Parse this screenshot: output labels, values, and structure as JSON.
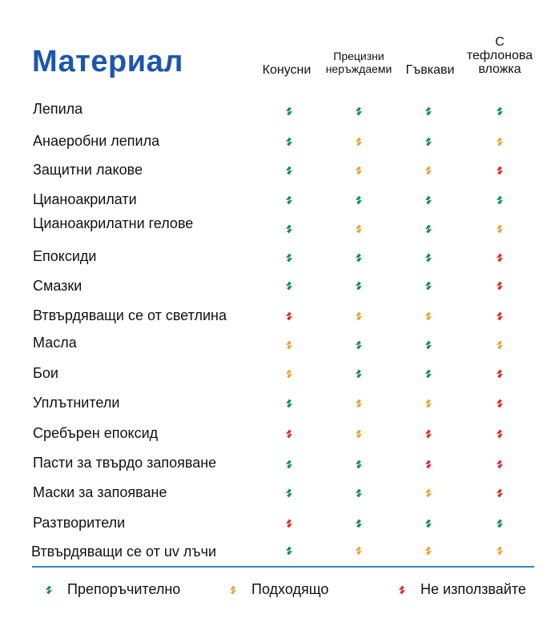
{
  "title": "Материал",
  "columns": [
    {
      "lines": [
        "Конусни"
      ]
    },
    {
      "lines": [
        "Прецизни",
        "неръждаеми"
      ]
    },
    {
      "lines": [
        "Гъвкави"
      ]
    },
    {
      "lines": [
        "С",
        "тефлонова",
        "вложка"
      ]
    }
  ],
  "colors": {
    "green": "#13924a",
    "orange": "#f0a030",
    "red": "#e02a2a",
    "title": "#1a56b0",
    "divider": "#2f86c6"
  },
  "icon": "arrow-swirl-icon",
  "rows": [
    {
      "label": "Лепила",
      "marks": [
        "green",
        "green",
        "green",
        "green"
      ]
    },
    {
      "label": "Анаеробни лепила",
      "marks": [
        "green",
        "orange",
        "green",
        "orange"
      ]
    },
    {
      "label": "Защитни лакове",
      "marks": [
        "green",
        "orange",
        "orange",
        "red"
      ]
    },
    {
      "label": "Цианоакрилати",
      "marks": [
        "green",
        "green",
        "green",
        "green"
      ]
    },
    {
      "label": "Цианоакрилатни гелове",
      "marks": [
        "green",
        "orange",
        "green",
        "orange"
      ]
    },
    {
      "label": "Епоксиди",
      "marks": [
        "green",
        "green",
        "green",
        "red"
      ]
    },
    {
      "label": "Смазки",
      "marks": [
        "green",
        "green",
        "green",
        "red"
      ]
    },
    {
      "label": "Втвърдяващи се от светлина",
      "marks": [
        "red",
        "orange",
        "orange",
        "red"
      ]
    },
    {
      "label": "Масла",
      "marks": [
        "orange",
        "green",
        "green",
        "orange"
      ]
    },
    {
      "label": "Бои",
      "marks": [
        "orange",
        "green",
        "green",
        "red"
      ]
    },
    {
      "label": "Уплътнители",
      "marks": [
        "green",
        "orange",
        "orange",
        "red"
      ]
    },
    {
      "label": "Сребърен епоксид",
      "marks": [
        "red",
        "orange",
        "red",
        "red"
      ]
    },
    {
      "label": "Пасти за твърдо запояване",
      "marks": [
        "green",
        "green",
        "red",
        "red"
      ]
    },
    {
      "label": "Маски за запояване",
      "marks": [
        "green",
        "green",
        "orange",
        "red"
      ]
    },
    {
      "label": "Разтворители",
      "marks": [
        "red",
        "green",
        "green",
        "green"
      ]
    },
    {
      "label": "Втвърдяващи се от uv лъчи",
      "marks": [
        "green",
        "orange",
        "orange",
        "orange"
      ]
    }
  ],
  "legend": [
    {
      "color": "green",
      "label": "Препоръчително"
    },
    {
      "color": "orange",
      "label": "Подходящо"
    },
    {
      "color": "red",
      "label": "Не използвайте"
    }
  ]
}
